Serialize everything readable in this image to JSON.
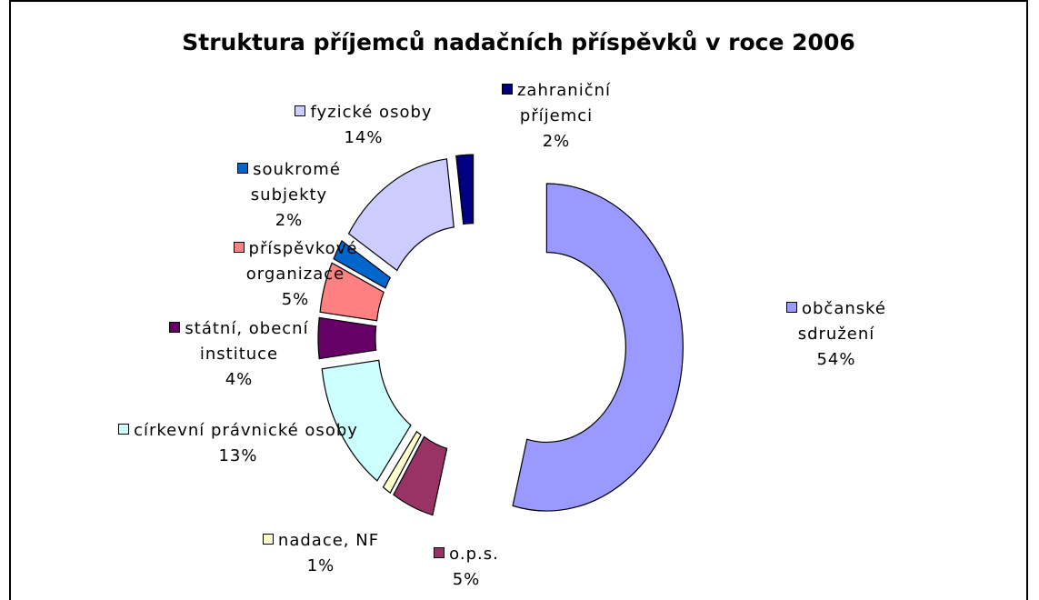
{
  "chart_data": {
    "type": "donut",
    "title": "Struktura příjemců nadačních příspěvků v roce 2006",
    "categories": [
      "občanské sdružení",
      "o.p.s.",
      "nadace, NF",
      "církevní právnické osoby",
      "státní, obecní instituce",
      "příspěvkové organizace",
      "soukromé subjekty",
      "fyzické osoby",
      "zahraniční příjemci"
    ],
    "values": [
      54,
      5,
      1,
      13,
      4,
      5,
      2,
      14,
      2
    ],
    "value_labels": [
      "54%",
      "5%",
      "1%",
      "13%",
      "4%",
      "5%",
      "2%",
      "14%",
      "2%"
    ],
    "colors": [
      "#9999ff",
      "#993366",
      "#ffffcc",
      "#ccffff",
      "#660066",
      "#ff8080",
      "#0066cc",
      "#ccccff",
      "#000080"
    ]
  }
}
